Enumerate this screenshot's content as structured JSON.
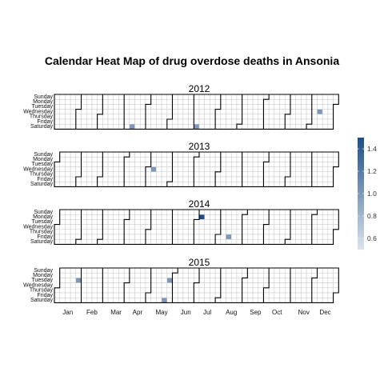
{
  "chart_data": {
    "type": "heatmap",
    "subtype": "calendar",
    "title": "Calendar Heat Map of drug overdose deaths in Ansonia",
    "weekday_labels": [
      "Sunday",
      "Monday",
      "Tuesday",
      "Wednesday",
      "Thursday",
      "Friday",
      "Saturday"
    ],
    "month_labels": [
      "Jan",
      "Feb",
      "Mar",
      "Apr",
      "May",
      "Jun",
      "Jul",
      "Aug",
      "Sep",
      "Oct",
      "Nov",
      "Dec"
    ],
    "years": [
      "2012",
      "2013",
      "2014",
      "2015"
    ],
    "events": [
      {
        "date": "2012-04-14",
        "value": 1
      },
      {
        "date": "2012-07-07",
        "value": 1
      },
      {
        "date": "2012-12-12",
        "value": 1
      },
      {
        "date": "2013-05-08",
        "value": 1
      },
      {
        "date": "2014-07-07",
        "value": 1.5
      },
      {
        "date": "2014-08-15",
        "value": 1
      },
      {
        "date": "2015-01-27",
        "value": 1
      },
      {
        "date": "2015-05-23",
        "value": 1
      },
      {
        "date": "2015-05-26",
        "value": 1
      }
    ],
    "legend": {
      "placement": "right",
      "ticks": [
        "1.4",
        "1.2",
        "1.0",
        "0.8",
        "0.6"
      ],
      "tick_values": [
        1.4,
        1.2,
        1.0,
        0.8,
        0.6
      ],
      "range": [
        0.5,
        1.5
      ],
      "color_low": "#dbe4ee",
      "color_high": "#1d4e89"
    },
    "colors": {
      "empty_cell": "#ffffff",
      "cell_border": "#c8c8c8",
      "month_border": "#000000"
    }
  }
}
